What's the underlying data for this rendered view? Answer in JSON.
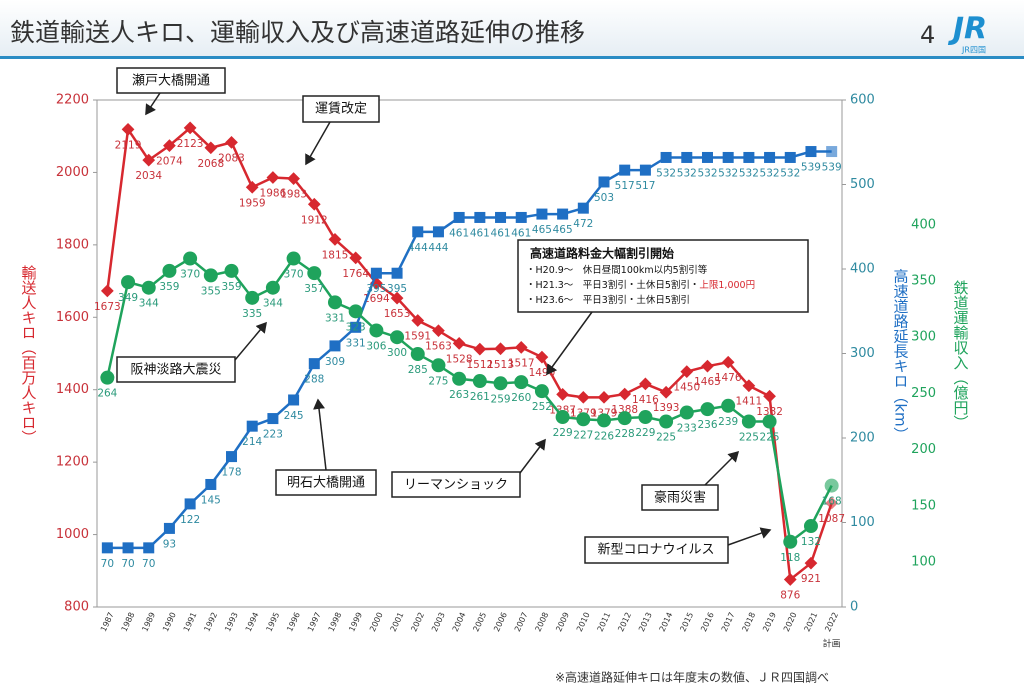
{
  "header": {
    "title": "鉄道輸送人キロ、運輸収入及び高速道路延伸の推移",
    "page_number": "4",
    "logo": "JR",
    "logo_sub": "JR四国"
  },
  "footnote": "※高速道路延伸キロは年度末の数値、ＪＲ四国調べ",
  "chart_data": {
    "type": "line",
    "categories": [
      "1987",
      "1988",
      "1989",
      "1990",
      "1991",
      "1992",
      "1993",
      "1994",
      "1995",
      "1996",
      "1997",
      "1998",
      "1999",
      "2000",
      "2001",
      "2002",
      "2003",
      "2004",
      "2005",
      "2006",
      "2007",
      "2008",
      "2009",
      "2010",
      "2011",
      "2012",
      "2013",
      "2014",
      "2015",
      "2016",
      "2017",
      "2018",
      "2019",
      "2020",
      "2021",
      "2022"
    ],
    "plan_note": "計画",
    "ylim": [
      800,
      2200
    ],
    "yticks": [
      800,
      1000,
      1200,
      1400,
      1600,
      1800,
      2000,
      2200
    ],
    "y2lim": [
      0,
      600
    ],
    "y2ticks": [
      0,
      100,
      200,
      300,
      400,
      500,
      600
    ],
    "y3lim": [
      60,
      511
    ],
    "y3ticks": [
      100,
      150,
      200,
      250,
      300,
      350,
      400
    ],
    "series": [
      {
        "name": "輸送人キロ（百万人キロ）",
        "color": "#d7282f",
        "label_color": "#c8323a",
        "marker": "diamond",
        "values": [
          1673,
          2119,
          2034,
          2074,
          2123,
          2068,
          2083,
          1959,
          1986,
          1983,
          1912,
          1815,
          1764,
          1694,
          1653,
          1591,
          1563,
          1528,
          1512,
          1513,
          1517,
          1490,
          1387,
          1379,
          1379,
          1388,
          1416,
          1393,
          1450,
          1465,
          1476,
          1411,
          1382,
          876,
          921,
          1087
        ]
      },
      {
        "name": "高速道路延長キロ（km）",
        "color": "#1f6fc4",
        "label_color": "#2f8aa0",
        "marker": "square",
        "axis": "y2",
        "values": [
          70,
          70,
          70,
          93,
          122,
          145,
          178,
          214,
          223,
          245,
          288,
          309,
          331,
          395,
          395,
          444,
          444,
          461,
          461,
          461,
          461,
          465,
          465,
          472,
          503,
          517,
          517,
          532,
          532,
          532,
          532,
          532,
          532,
          532,
          539,
          539
        ]
      },
      {
        "name": "鉄道運輸収入（億円）",
        "color": "#1fa35c",
        "label_color": "#2a9a7a",
        "marker": "circle",
        "axis": "y3",
        "values": [
          264,
          349,
          344,
          359,
          370,
          355,
          359,
          335,
          344,
          370,
          357,
          331,
          323,
          306,
          300,
          285,
          275,
          263,
          261,
          259,
          260,
          252,
          229,
          227,
          226,
          228,
          229,
          225,
          233,
          236,
          239,
          225,
          225,
          118,
          132,
          168
        ]
      }
    ],
    "annotations": [
      "瀬戸大橋開通",
      "運賃改定",
      "阪神淡路大震災",
      "明石大橋開通",
      "リーマンショック",
      "豪雨災害",
      "新型コロナウイルス"
    ],
    "discount_box": {
      "title": "高速道路料金大幅割引開始",
      "lines": [
        [
          "・H20.9～　休日昼間100km以内5割引等"
        ],
        [
          "・H21.3～　平日3割引・土休日5割引・",
          "上限1,000円"
        ],
        [
          "・H23.6～　平日3割引・土休日5割引"
        ]
      ]
    }
  }
}
